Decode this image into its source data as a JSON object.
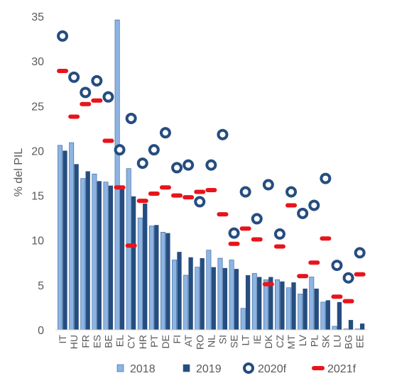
{
  "chart_data": {
    "type": "bar",
    "ylabel": "% del PIL",
    "xlabel": "",
    "title": "",
    "ylim": [
      0,
      35
    ],
    "yticks": [
      "0",
      "5",
      "10",
      "15",
      "20",
      "25",
      "30",
      "35"
    ],
    "categories": [
      "IT",
      "HU",
      "FR",
      "ES",
      "BE",
      "EL",
      "CY",
      "HR",
      "PT",
      "DE",
      "FI",
      "AT",
      "RO",
      "NL",
      "SI",
      "SE",
      "LT",
      "IE",
      "DK",
      "CZ",
      "MT",
      "LV",
      "PL",
      "SK",
      "LU",
      "BG",
      "EE"
    ],
    "series": [
      {
        "name": "2018",
        "kind": "bar",
        "color": "#8db4e2",
        "values": [
          20.6,
          20.9,
          16.9,
          17.4,
          16.5,
          34.6,
          18.0,
          12.5,
          11.6,
          10.9,
          7.8,
          6.1,
          7.0,
          8.9,
          8.0,
          7.8,
          2.4,
          6.3,
          5.6,
          5.6,
          4.7,
          4.0,
          5.9,
          3.1,
          0.4,
          0.1,
          0.1
        ]
      },
      {
        "name": "2019",
        "kind": "bar",
        "color": "#254d7f",
        "values": [
          20.0,
          18.5,
          17.7,
          16.6,
          16.1,
          15.9,
          14.9,
          14.1,
          11.7,
          10.8,
          8.7,
          8.1,
          8.0,
          7.0,
          6.9,
          6.8,
          6.1,
          5.9,
          5.9,
          5.4,
          5.3,
          4.6,
          4.6,
          3.3,
          3.1,
          1.1,
          0.7
        ]
      },
      {
        "name": "2020f",
        "kind": "marker-circle",
        "color": "#254d7f",
        "values": [
          32.8,
          28.2,
          26.5,
          27.8,
          26.0,
          20.1,
          23.6,
          18.6,
          20.1,
          22.0,
          18.1,
          18.4,
          14.3,
          18.4,
          21.8,
          10.8,
          15.4,
          12.4,
          16.2,
          10.7,
          15.4,
          13.0,
          13.9,
          16.9,
          7.2,
          5.8,
          8.6
        ]
      },
      {
        "name": "2021f",
        "kind": "marker-dash",
        "color": "#e8141b",
        "values": [
          28.9,
          23.8,
          25.2,
          25.6,
          21.1,
          15.9,
          9.4,
          14.4,
          15.2,
          15.9,
          15.0,
          14.8,
          15.4,
          15.6,
          12.9,
          9.6,
          11.3,
          10.1,
          5.1,
          9.3,
          13.9,
          6.0,
          7.5,
          10.2,
          3.7,
          3.2,
          6.2
        ]
      }
    ],
    "legend_position": "bottom",
    "grid": false
  }
}
